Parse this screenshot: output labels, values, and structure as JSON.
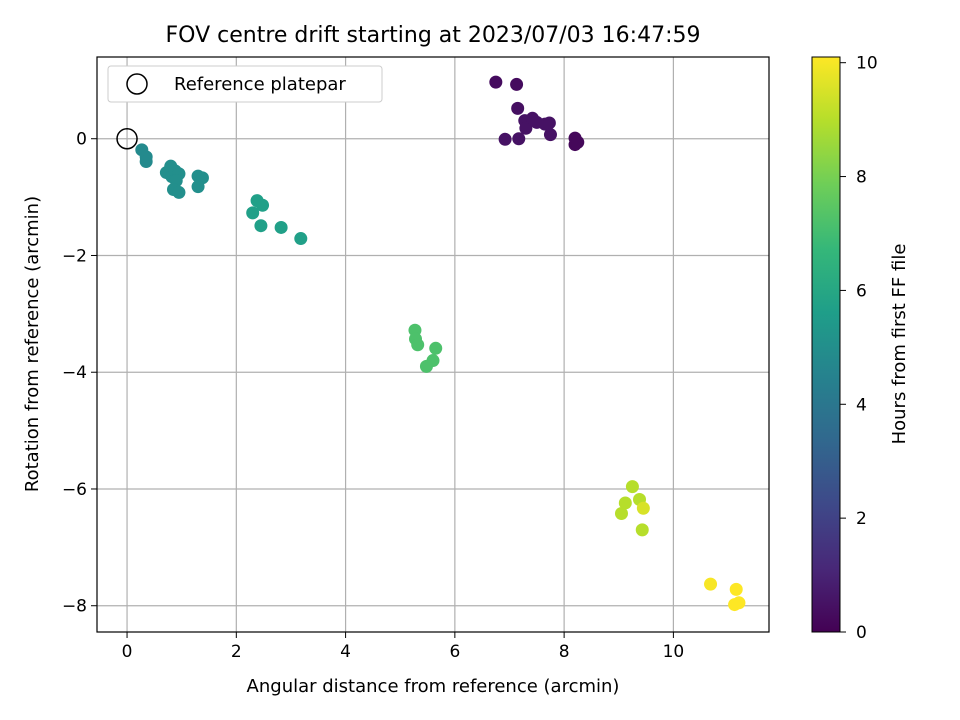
{
  "chart_data": {
    "type": "scatter",
    "title": "FOV centre drift starting at 2023/07/03 16:47:59",
    "xlabel": "Angular distance from reference (arcmin)",
    "ylabel": "Rotation from reference (arcmin)",
    "colorbar_label": "Hours from first FF file",
    "xlim": [
      -0.55,
      11.75
    ],
    "ylim": [
      -8.45,
      1.4
    ],
    "clim": [
      0,
      10.1
    ],
    "x_ticks": [
      0,
      2,
      4,
      6,
      8,
      10
    ],
    "y_ticks": [
      0,
      -2,
      -4,
      -6,
      -8
    ],
    "colorbar_ticks": [
      0,
      2,
      4,
      6,
      8,
      10
    ],
    "grid": true,
    "legend": {
      "placement": "top-left",
      "entries": [
        "Reference platepar"
      ]
    },
    "reference_point": {
      "x": 0,
      "y": 0
    },
    "colormap": "viridis",
    "colormap_stops": [
      "#440154",
      "#482878",
      "#3e4989",
      "#31688e",
      "#26828e",
      "#1f9e89",
      "#35b779",
      "#6ece58",
      "#b5de2b",
      "#fde725"
    ],
    "points": [
      {
        "x": 6.75,
        "y": 0.97,
        "h": 0.3
      },
      {
        "x": 7.13,
        "y": 0.93,
        "h": 0.3
      },
      {
        "x": 7.15,
        "y": 0.52,
        "h": 0.4
      },
      {
        "x": 7.28,
        "y": 0.31,
        "h": 0.5
      },
      {
        "x": 7.3,
        "y": 0.18,
        "h": 0.5
      },
      {
        "x": 7.42,
        "y": 0.35,
        "h": 0.5
      },
      {
        "x": 7.5,
        "y": 0.28,
        "h": 0.5
      },
      {
        "x": 7.65,
        "y": 0.25,
        "h": 0.5
      },
      {
        "x": 7.73,
        "y": 0.27,
        "h": 0.5
      },
      {
        "x": 7.75,
        "y": 0.07,
        "h": 0.5
      },
      {
        "x": 6.92,
        "y": -0.01,
        "h": 0.5
      },
      {
        "x": 7.17,
        "y": 0.0,
        "h": 0.5
      },
      {
        "x": 8.2,
        "y": 0.01,
        "h": 0.2
      },
      {
        "x": 8.25,
        "y": -0.06,
        "h": 0.2
      },
      {
        "x": 8.2,
        "y": -0.1,
        "h": 0.2
      },
      {
        "x": 0.27,
        "y": -0.19,
        "h": 4.8
      },
      {
        "x": 0.35,
        "y": -0.31,
        "h": 4.8
      },
      {
        "x": 0.35,
        "y": -0.39,
        "h": 4.8
      },
      {
        "x": 0.72,
        "y": -0.58,
        "h": 5.0
      },
      {
        "x": 0.8,
        "y": -0.47,
        "h": 5.0
      },
      {
        "x": 0.82,
        "y": -0.65,
        "h": 5.0
      },
      {
        "x": 0.88,
        "y": -0.55,
        "h": 5.0
      },
      {
        "x": 0.95,
        "y": -0.6,
        "h": 5.0
      },
      {
        "x": 0.9,
        "y": -0.72,
        "h": 5.0
      },
      {
        "x": 0.85,
        "y": -0.87,
        "h": 5.0
      },
      {
        "x": 0.95,
        "y": -0.92,
        "h": 5.0
      },
      {
        "x": 1.3,
        "y": -0.64,
        "h": 5.0
      },
      {
        "x": 1.38,
        "y": -0.67,
        "h": 5.0
      },
      {
        "x": 1.3,
        "y": -0.82,
        "h": 5.0
      },
      {
        "x": 2.3,
        "y": -1.27,
        "h": 5.7
      },
      {
        "x": 2.38,
        "y": -1.06,
        "h": 5.7
      },
      {
        "x": 2.48,
        "y": -1.14,
        "h": 5.7
      },
      {
        "x": 2.45,
        "y": -1.49,
        "h": 5.7
      },
      {
        "x": 2.82,
        "y": -1.52,
        "h": 5.7
      },
      {
        "x": 3.18,
        "y": -1.71,
        "h": 5.7
      },
      {
        "x": 5.27,
        "y": -3.28,
        "h": 7.2
      },
      {
        "x": 5.28,
        "y": -3.43,
        "h": 7.2
      },
      {
        "x": 5.32,
        "y": -3.53,
        "h": 7.2
      },
      {
        "x": 5.65,
        "y": -3.59,
        "h": 7.2
      },
      {
        "x": 5.6,
        "y": -3.8,
        "h": 7.2
      },
      {
        "x": 5.48,
        "y": -3.9,
        "h": 7.2
      },
      {
        "x": 9.25,
        "y": -5.96,
        "h": 9.0
      },
      {
        "x": 9.12,
        "y": -6.24,
        "h": 9.0
      },
      {
        "x": 9.38,
        "y": -6.18,
        "h": 9.0
      },
      {
        "x": 9.45,
        "y": -6.33,
        "h": 9.5
      },
      {
        "x": 9.05,
        "y": -6.42,
        "h": 9.0
      },
      {
        "x": 9.43,
        "y": -6.7,
        "h": 9.0
      },
      {
        "x": 10.68,
        "y": -7.63,
        "h": 10.0
      },
      {
        "x": 11.15,
        "y": -7.72,
        "h": 10.1
      },
      {
        "x": 11.2,
        "y": -7.95,
        "h": 10.1
      },
      {
        "x": 11.12,
        "y": -7.98,
        "h": 10.1
      }
    ]
  }
}
